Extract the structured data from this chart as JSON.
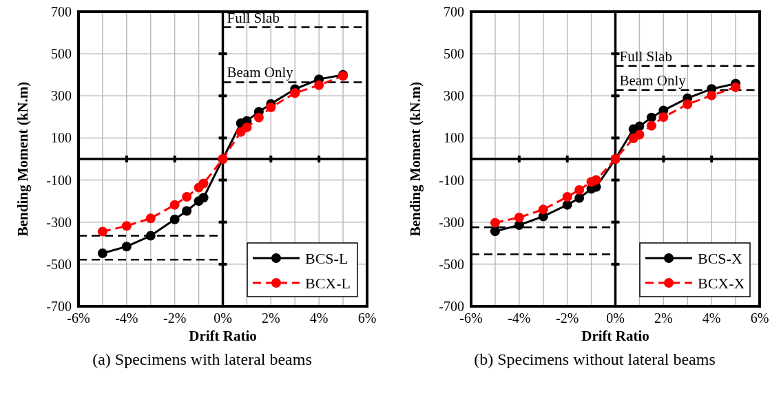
{
  "chart_data": [
    {
      "type": "line",
      "title": "(a) Specimens with lateral beams",
      "xlabel": "Drift Ratio",
      "ylabel": "Bending Moment (kN.m)",
      "xlim": [
        -6,
        6
      ],
      "ylim": [
        -700,
        700
      ],
      "xticks": [
        {
          "value": -6,
          "label": "-6%"
        },
        {
          "value": -5,
          "label": null
        },
        {
          "value": -4,
          "label": "-4%"
        },
        {
          "value": -3,
          "label": null
        },
        {
          "value": -2,
          "label": "-2%"
        },
        {
          "value": -1,
          "label": null
        },
        {
          "value": 0,
          "label": "0%"
        },
        {
          "value": 1,
          "label": null
        },
        {
          "value": 2,
          "label": "2%"
        },
        {
          "value": 3,
          "label": null
        },
        {
          "value": 4,
          "label": "4%"
        },
        {
          "value": 5,
          "label": null
        },
        {
          "value": 6,
          "label": "6%"
        }
      ],
      "yticks": [
        -700,
        -500,
        -300,
        -100,
        100,
        300,
        500,
        700
      ],
      "grid": true,
      "legend": "bottom right",
      "marker": "circle",
      "series": [
        {
          "name": "BCS-L",
          "color": "#000000",
          "line_style": "solid",
          "x": [
            -5,
            -4,
            -3,
            -2,
            -1.5,
            -1,
            -0.8,
            0,
            0.75,
            1,
            1.5,
            2,
            3,
            4,
            5
          ],
          "values": [
            -448,
            -416,
            -365,
            -287,
            -247,
            -200,
            -184,
            0,
            170,
            181,
            224,
            262,
            332,
            379,
            400
          ]
        },
        {
          "name": "BCX-L",
          "color": "#ff0000",
          "line_style": "dashed",
          "x": [
            -5,
            -4,
            -3,
            -2,
            -1.5,
            -1,
            -0.8,
            0,
            0.75,
            1,
            1.5,
            2,
            3,
            4,
            5
          ],
          "values": [
            -345,
            -318,
            -282,
            -218,
            -180,
            -136,
            -116,
            0,
            128,
            150,
            197,
            245,
            313,
            351,
            395
          ]
        }
      ],
      "ref_lines": [
        {
          "axis": "y",
          "value": 626,
          "label": "Full Slab",
          "color": "#000000",
          "line_style": "dashed"
        },
        {
          "axis": "y",
          "value": 365,
          "label": "Beam Only",
          "color": "#000000",
          "line_style": "dashed"
        },
        {
          "axis": "y",
          "value": -365,
          "color": "#000000",
          "line_style": "dashed"
        },
        {
          "axis": "y",
          "value": -478,
          "color": "#000000",
          "line_style": "dashed"
        }
      ]
    },
    {
      "type": "line",
      "title": "(b) Specimens without lateral beams",
      "xlabel": "Drift Ratio",
      "ylabel": "Bending Moment (kN.m)",
      "xlim": [
        -6,
        6
      ],
      "ylim": [
        -700,
        700
      ],
      "xticks": [
        {
          "value": -6,
          "label": "-6%"
        },
        {
          "value": -5,
          "label": null
        },
        {
          "value": -4,
          "label": "-4%"
        },
        {
          "value": -3,
          "label": null
        },
        {
          "value": -2,
          "label": "-2%"
        },
        {
          "value": -1,
          "label": null
        },
        {
          "value": 0,
          "label": "0%"
        },
        {
          "value": 1,
          "label": null
        },
        {
          "value": 2,
          "label": "2%"
        },
        {
          "value": 3,
          "label": null
        },
        {
          "value": 4,
          "label": "4%"
        },
        {
          "value": 5,
          "label": null
        },
        {
          "value": 6,
          "label": "6%"
        }
      ],
      "yticks": [
        -700,
        -500,
        -300,
        -100,
        100,
        300,
        500,
        700
      ],
      "grid": true,
      "legend": "bottom right",
      "marker": "circle",
      "series": [
        {
          "name": "BCS-X",
          "color": "#000000",
          "line_style": "solid",
          "x": [
            -5,
            -4,
            -3,
            -2,
            -1.5,
            -1,
            -0.8,
            0,
            0.75,
            1,
            1.5,
            2,
            3,
            4,
            5
          ],
          "values": [
            -344,
            -314,
            -273,
            -218,
            -186,
            -142,
            -133,
            0,
            142,
            155,
            197,
            231,
            289,
            333,
            358
          ]
        },
        {
          "name": "BCX-X",
          "color": "#ff0000",
          "line_style": "dashed",
          "x": [
            -5,
            -4,
            -3,
            -2,
            -1.5,
            -1,
            -0.8,
            0,
            0.75,
            1,
            1.5,
            2,
            3,
            4,
            5
          ],
          "values": [
            -303,
            -278,
            -240,
            -180,
            -147,
            -109,
            -100,
            0,
            98,
            115,
            158,
            199,
            260,
            302,
            341
          ]
        }
      ],
      "ref_lines": [
        {
          "axis": "y",
          "value": 442,
          "label": "Full Slab",
          "color": "#000000",
          "line_style": "dashed"
        },
        {
          "axis": "y",
          "value": 328,
          "label": "Beam Only",
          "color": "#000000",
          "line_style": "dashed"
        },
        {
          "axis": "y",
          "value": -325,
          "color": "#000000",
          "line_style": "dashed"
        },
        {
          "axis": "y",
          "value": -453,
          "color": "#000000",
          "line_style": "dashed"
        }
      ]
    }
  ]
}
